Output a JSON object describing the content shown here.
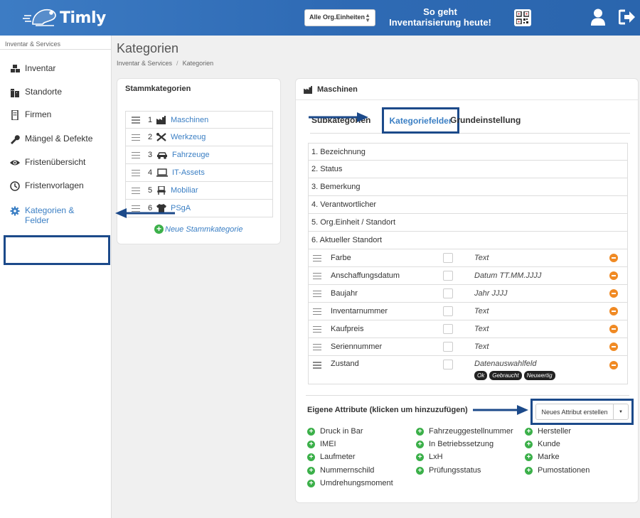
{
  "header": {
    "logo_text": "Timly",
    "org_select": "Alle Org.Einheiten",
    "promo_line1": "So geht",
    "promo_line2": "Inventarisierung heute!"
  },
  "sidebar": {
    "section_title": "Inventar & Services",
    "items": [
      {
        "label": "Inventar",
        "icon": "cubes-icon"
      },
      {
        "label": "Standorte",
        "icon": "buildings-icon"
      },
      {
        "label": "Firmen",
        "icon": "building-icon"
      },
      {
        "label": "Mängel & Defekte",
        "icon": "wrench-icon"
      },
      {
        "label": "Fristenübersicht",
        "icon": "eye-icon"
      },
      {
        "label": "Fristenvorlagen",
        "icon": "clock-icon"
      },
      {
        "label": "Kategorien &",
        "label2": "Felder",
        "icon": "gear-icon"
      }
    ]
  },
  "page": {
    "title": "Kategorien",
    "breadcrumb": [
      "Inventar & Services",
      "/",
      "Kategorien"
    ]
  },
  "stamm": {
    "title": "Stammkategorien",
    "rows": [
      {
        "num": "1",
        "name": "Maschinen",
        "icon": "factory-icon"
      },
      {
        "num": "2",
        "name": "Werkzeug",
        "icon": "tools-icon"
      },
      {
        "num": "3",
        "name": "Fahrzeuge",
        "icon": "car-icon"
      },
      {
        "num": "4",
        "name": "IT-Assets",
        "icon": "laptop-icon"
      },
      {
        "num": "5",
        "name": "Mobiliar",
        "icon": "chair-icon"
      },
      {
        "num": "6",
        "name": "PSgA",
        "icon": "shirt-icon"
      }
    ],
    "new_label": "Neue Stammkategorie"
  },
  "detail": {
    "title": "Maschinen",
    "tabs": {
      "sub": "Subkategorien",
      "felder": "Kategoriefelder",
      "grund": "Grundeinstellung"
    },
    "fixed_fields": [
      "1. Bezeichnung",
      "2. Status",
      "3. Bemerkung",
      "4. Verantwortlicher",
      "5. Org.Einheit / Standort",
      "6. Aktueller Standort"
    ],
    "custom_fields": [
      {
        "name": "Farbe",
        "type": "Text"
      },
      {
        "name": "Anschaffungsdatum",
        "type": "Datum TT.MM.JJJJ"
      },
      {
        "name": "Baujahr",
        "type": "Jahr JJJJ"
      },
      {
        "name": "Inventarnummer",
        "type": "Text"
      },
      {
        "name": "Kaufpreis",
        "type": "Text"
      },
      {
        "name": "Seriennummer",
        "type": "Text"
      },
      {
        "name": "Zustand",
        "type": "Datenauswahlfeld",
        "options": [
          "Ok",
          "Gebraucht",
          "Neuwertig"
        ]
      }
    ],
    "attr_title": "Eigene Attribute (klicken um hinzuzufügen)",
    "new_attr_button": "Neues Attribut erstellen",
    "attributes_col1": [
      "Druck in Bar",
      "IMEI",
      "Laufmeter",
      "Nummernschild",
      "Umdrehungsmoment"
    ],
    "attributes_col2": [
      "Fahrzeuggestellnummer",
      "In Betriebssetzung",
      "LxH",
      "Prüfungsstatus"
    ],
    "attributes_col3": [
      "Hersteller",
      "Kunde",
      "Marke",
      "Pumostationen"
    ]
  },
  "colors": {
    "brand": "#2f6bb5",
    "link": "#3b7fc4",
    "highlight": "#1c4a8a",
    "add": "#3cb04a",
    "remove": "#f08a24"
  }
}
